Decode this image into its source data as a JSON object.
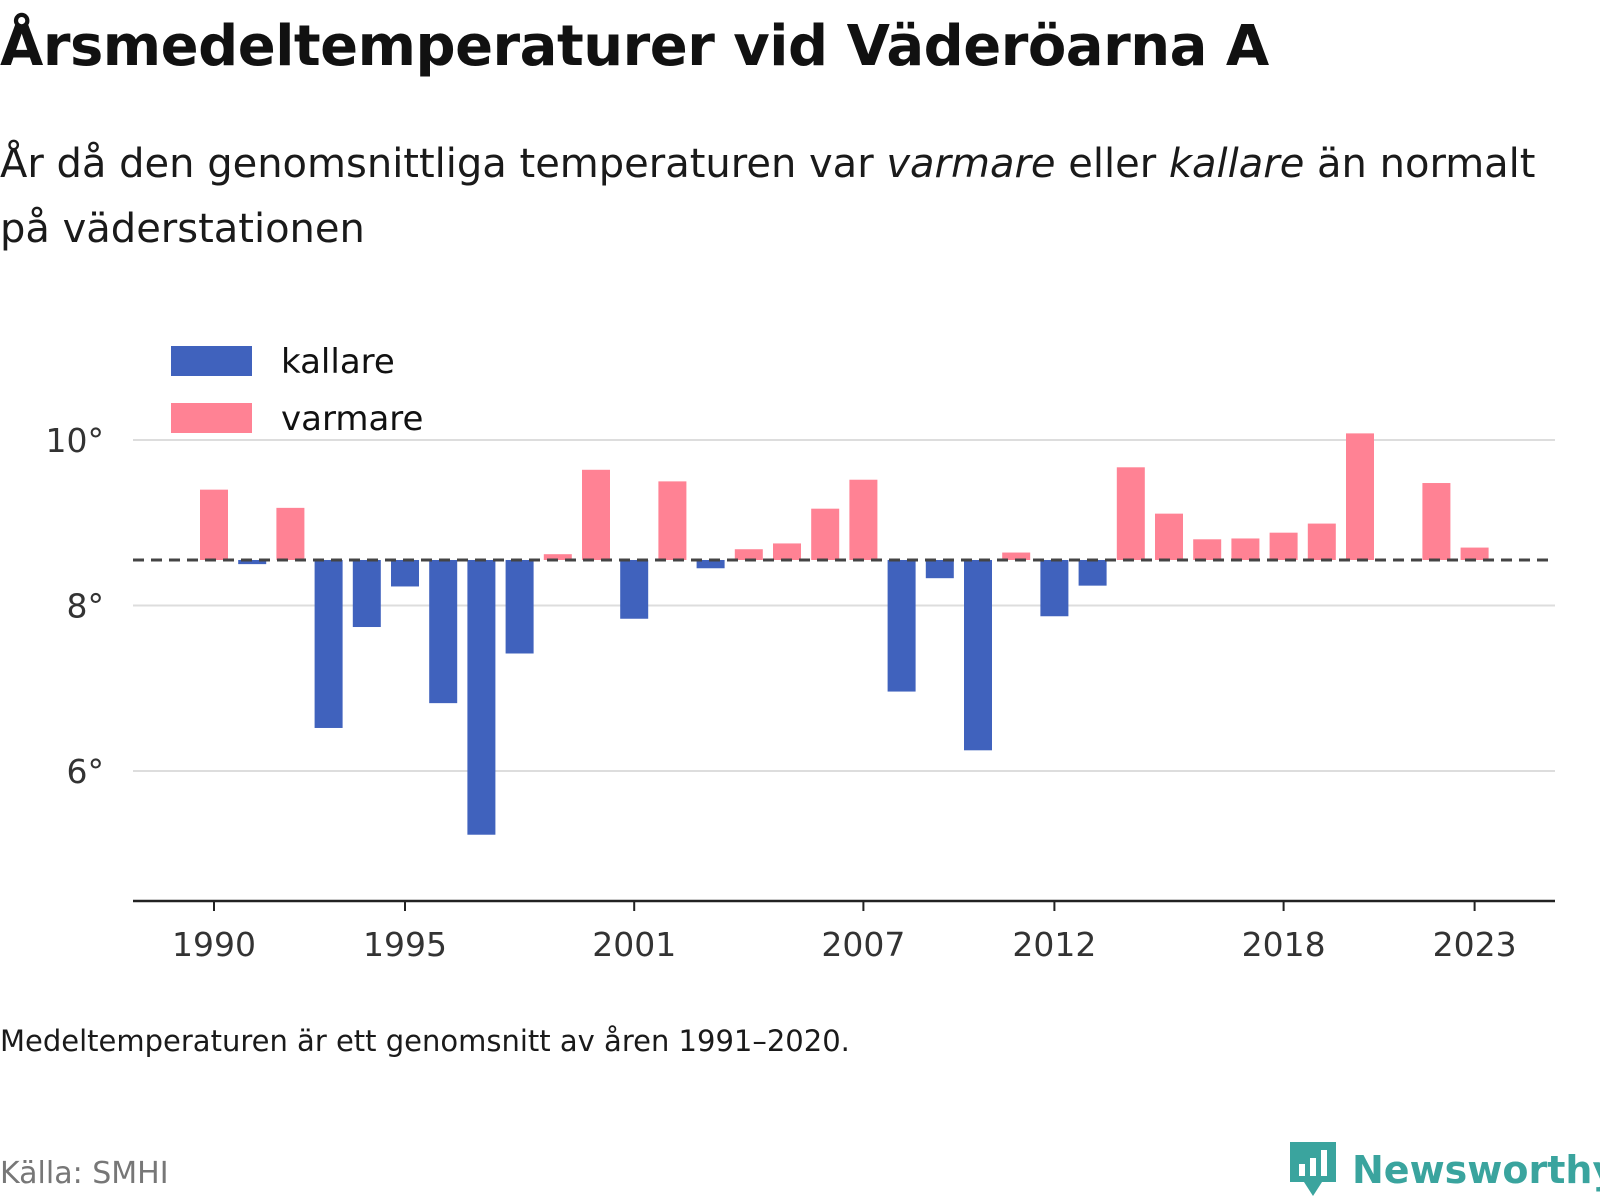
{
  "title": "Årsmedeltemperaturer vid Väderöarna A",
  "subtitle": {
    "part1": "År då den genomsnittliga temperaturen var ",
    "warmer_word": "varmare",
    "part2": " eller ",
    "colder_word": "kallare",
    "part3": " än normalt på väderstationen"
  },
  "note": "Medeltemperaturen är ett genomsnitt av åren 1991–2020.",
  "source": "Källa: SMHI",
  "brand": {
    "name": "Newsworthy",
    "icon": "newsworthy-logo-icon",
    "color": "#3aa49e"
  },
  "chart_data": {
    "type": "bar",
    "title": "",
    "xlabel": "",
    "ylabel": "",
    "baseline": 8.55,
    "ylim": [
      4.45,
      10.2
    ],
    "y_ticks": [
      6,
      8,
      10
    ],
    "y_tick_labels": [
      "6°",
      "8°",
      "10°"
    ],
    "x_ticks": [
      1990,
      1995,
      2001,
      2007,
      2012,
      2018,
      2023
    ],
    "x_tick_labels": [
      "1990",
      "1995",
      "2001",
      "2007",
      "2012",
      "2018",
      "2023"
    ],
    "grid": true,
    "legend": {
      "placement": "top-left",
      "items": [
        {
          "name": "kallare",
          "color": "#4062bd"
        },
        {
          "name": "varmare",
          "color": "#ff8294"
        }
      ]
    },
    "colors": {
      "colder": "#4062bd",
      "warmer": "#ff8294"
    },
    "years": [
      1990,
      1991,
      1992,
      1993,
      1994,
      1995,
      1996,
      1997,
      1998,
      1999,
      2000,
      2001,
      2002,
      2003,
      2004,
      2005,
      2006,
      2007,
      2008,
      2009,
      2010,
      2011,
      2012,
      2013,
      2014,
      2015,
      2016,
      2017,
      2018,
      2019,
      2020,
      2021,
      2022,
      2023
    ],
    "values": [
      9.4,
      8.5,
      9.18,
      6.52,
      7.74,
      8.23,
      6.82,
      5.23,
      7.42,
      8.62,
      9.64,
      7.84,
      9.5,
      8.45,
      8.68,
      8.75,
      9.17,
      9.52,
      6.96,
      8.33,
      6.25,
      8.64,
      7.87,
      8.24,
      9.67,
      9.11,
      8.8,
      8.81,
      8.88,
      8.99,
      10.08,
      null,
      9.48,
      8.7
    ]
  }
}
